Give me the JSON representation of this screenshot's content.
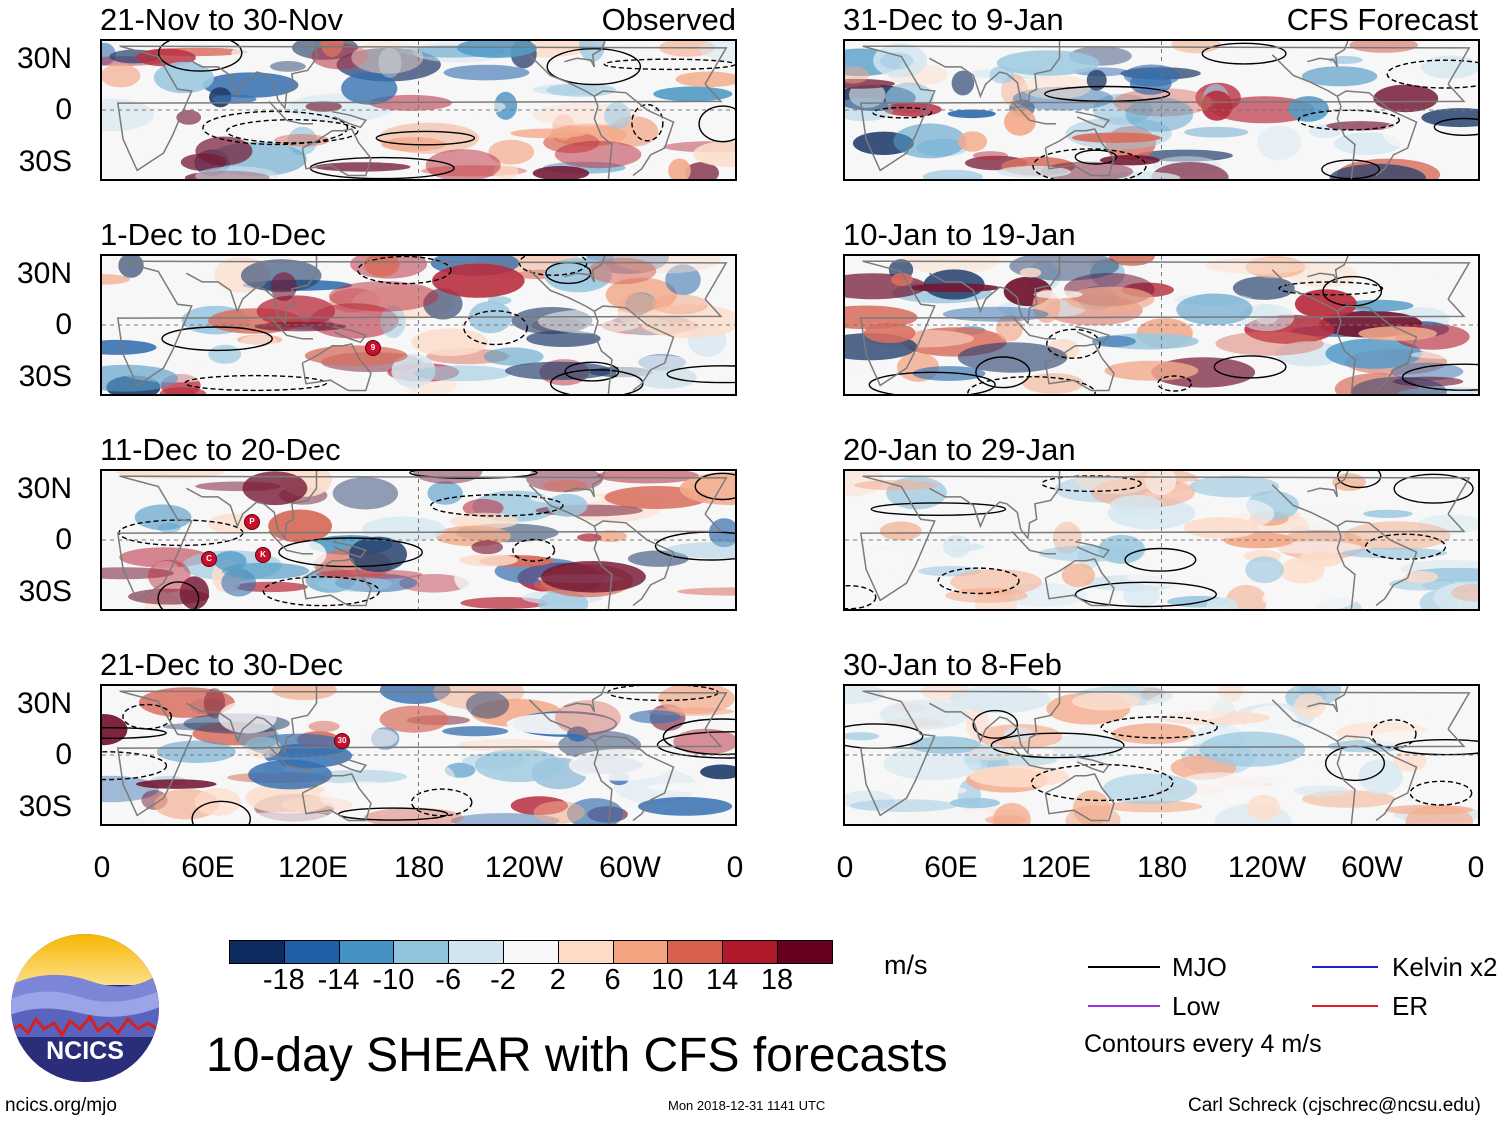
{
  "figure": {
    "title": "10-day SHEAR with CFS forecasts",
    "units": "m/s",
    "contour_note": "Contours every 4 m/s",
    "website": "ncics.org/mjo",
    "timestamp": "Mon 2018-12-31 1141 UTC",
    "author": "Carl Schreck (cjschrec@ncsu.edu)",
    "logo_text": "NCICS"
  },
  "columns": {
    "left_tag": "Observed",
    "right_tag": "CFS Forecast"
  },
  "panels": {
    "left": [
      {
        "title": "21-Nov to 30-Nov"
      },
      {
        "title": "1-Dec to 10-Dec"
      },
      {
        "title": "11-Dec to 20-Dec"
      },
      {
        "title": "21-Dec to 30-Dec"
      }
    ],
    "right": [
      {
        "title": "31-Dec to 9-Jan"
      },
      {
        "title": "10-Jan to 19-Jan"
      },
      {
        "title": "20-Jan to 29-Jan"
      },
      {
        "title": "30-Jan to 8-Feb"
      }
    ]
  },
  "lat_ticks": [
    "30N",
    "0",
    "30S"
  ],
  "lon_ticks": [
    "0",
    "60E",
    "120E",
    "180",
    "120W",
    "60W",
    "0"
  ],
  "colorbar": {
    "colors": [
      "#0d2b5e",
      "#1f5fa8",
      "#4392c3",
      "#93c4de",
      "#d1e5f0",
      "#f7f7f7",
      "#fddbc7",
      "#f3a481",
      "#d6604d",
      "#b2182b",
      "#67001f"
    ],
    "ticks": [
      "-18",
      "-14",
      "-10",
      "-6",
      "-2",
      "2",
      "6",
      "10",
      "14",
      "18"
    ]
  },
  "legend": [
    {
      "label": "MJO",
      "color": "#000000"
    },
    {
      "label": "Kelvin x2",
      "color": "#1f1fd6"
    },
    {
      "label": "Low",
      "color": "#9b30e0"
    },
    {
      "label": "ER",
      "color": "#e01f1f"
    }
  ],
  "storm_markers": [
    {
      "panel": "left-1",
      "label": "9"
    },
    {
      "panel": "left-2",
      "label": "P"
    },
    {
      "panel": "left-2",
      "label": "C"
    },
    {
      "panel": "left-2",
      "label": "K"
    },
    {
      "panel": "left-3",
      "label": "30"
    }
  ]
}
